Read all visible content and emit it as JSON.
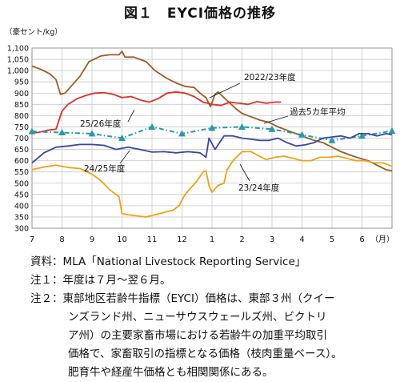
{
  "title": "図１　EYCI価格の推移",
  "chart_data": {
    "type": "line",
    "ylabel": "（豪セント/kg）",
    "ylim": [
      300,
      1100
    ],
    "y_ticks": [
      "300",
      "350",
      "400",
      "450",
      "500",
      "550",
      "600",
      "650",
      "700",
      "750",
      "800",
      "850",
      "900",
      "950",
      "1,000",
      "1,050",
      "1,100"
    ],
    "x_ticks": [
      "7",
      "8",
      "9",
      "10",
      "11",
      "12",
      "1",
      "2",
      "3",
      "4",
      "5",
      "6"
    ],
    "x_unit": "（月）",
    "grid": true,
    "series": [
      {
        "name": "2022/23年度",
        "color": "#9b5d25",
        "points": [
          [
            0,
            1020
          ],
          [
            0.3,
            1005
          ],
          [
            0.6,
            985
          ],
          [
            0.8,
            960
          ],
          [
            0.95,
            895
          ],
          [
            1.1,
            900
          ],
          [
            1.3,
            930
          ],
          [
            1.6,
            975
          ],
          [
            1.9,
            1040
          ],
          [
            2.3,
            1065
          ],
          [
            2.6,
            1070
          ],
          [
            2.9,
            1070
          ],
          [
            3.0,
            1085
          ],
          [
            3.1,
            1060
          ],
          [
            3.4,
            1060
          ],
          [
            3.8,
            1040
          ],
          [
            4.1,
            1000
          ],
          [
            4.5,
            965
          ],
          [
            4.8,
            945
          ],
          [
            5.1,
            930
          ],
          [
            5.4,
            925
          ],
          [
            5.6,
            900
          ],
          [
            5.8,
            880
          ],
          [
            5.95,
            840
          ],
          [
            6.1,
            895
          ],
          [
            6.2,
            905
          ],
          [
            6.4,
            880
          ],
          [
            6.6,
            855
          ],
          [
            6.8,
            830
          ],
          [
            7.0,
            810
          ],
          [
            7.3,
            795
          ],
          [
            7.6,
            780
          ],
          [
            7.9,
            770
          ],
          [
            8.2,
            750
          ],
          [
            8.5,
            735
          ],
          [
            8.8,
            720
          ],
          [
            9.1,
            705
          ],
          [
            9.4,
            690
          ],
          [
            9.7,
            680
          ],
          [
            10.0,
            660
          ],
          [
            10.3,
            640
          ],
          [
            10.6,
            625
          ],
          [
            10.9,
            612
          ],
          [
            11.2,
            600
          ],
          [
            11.5,
            580
          ],
          [
            11.8,
            560
          ],
          [
            12.0,
            555
          ]
        ]
      },
      {
        "name": "25/26年度",
        "color": "#e0302a",
        "points": [
          [
            0,
            725
          ],
          [
            0.2,
            725
          ],
          [
            0.5,
            735
          ],
          [
            0.8,
            740
          ],
          [
            1.0,
            820
          ],
          [
            1.2,
            850
          ],
          [
            1.5,
            875
          ],
          [
            1.8,
            890
          ],
          [
            2.1,
            900
          ],
          [
            2.4,
            902
          ],
          [
            2.7,
            895
          ],
          [
            3.0,
            880
          ],
          [
            3.3,
            885
          ],
          [
            3.6,
            870
          ],
          [
            3.9,
            860
          ],
          [
            4.2,
            875
          ],
          [
            4.5,
            900
          ],
          [
            4.8,
            905
          ],
          [
            5.1,
            900
          ],
          [
            5.4,
            885
          ],
          [
            5.7,
            860
          ],
          [
            6.0,
            850
          ],
          [
            6.3,
            845
          ],
          [
            6.6,
            860
          ],
          [
            6.9,
            855
          ],
          [
            7.2,
            850
          ],
          [
            7.5,
            862
          ],
          [
            7.8,
            855
          ],
          [
            8.1,
            860
          ],
          [
            8.3,
            860
          ]
        ]
      },
      {
        "name": "過去5カ年平均",
        "color": "#2a9aa5",
        "dashed": true,
        "markers": true,
        "points": [
          [
            0,
            730
          ],
          [
            1,
            725
          ],
          [
            2,
            720
          ],
          [
            3,
            700
          ],
          [
            4,
            750
          ],
          [
            5,
            720
          ],
          [
            6,
            745
          ],
          [
            7,
            750
          ],
          [
            8,
            740
          ],
          [
            9,
            715
          ],
          [
            10,
            690
          ],
          [
            11,
            710
          ],
          [
            12,
            732
          ]
        ]
      },
      {
        "name": "24/25年度",
        "color": "#3a46a5",
        "points": [
          [
            0,
            590
          ],
          [
            0.4,
            635
          ],
          [
            0.8,
            660
          ],
          [
            1.2,
            665
          ],
          [
            1.6,
            672
          ],
          [
            2.0,
            672
          ],
          [
            2.4,
            668
          ],
          [
            2.8,
            650
          ],
          [
            3.2,
            660
          ],
          [
            3.6,
            650
          ],
          [
            4.0,
            638
          ],
          [
            4.4,
            640
          ],
          [
            4.8,
            635
          ],
          [
            5.2,
            640
          ],
          [
            5.6,
            635
          ],
          [
            5.8,
            615
          ],
          [
            5.9,
            700
          ],
          [
            6.1,
            650
          ],
          [
            6.4,
            710
          ],
          [
            6.7,
            710
          ],
          [
            7.0,
            700
          ],
          [
            7.3,
            695
          ],
          [
            7.6,
            690
          ],
          [
            7.9,
            690
          ],
          [
            8.2,
            700
          ],
          [
            8.5,
            680
          ],
          [
            8.8,
            665
          ],
          [
            9.1,
            670
          ],
          [
            9.4,
            680
          ],
          [
            9.7,
            700
          ],
          [
            10.0,
            705
          ],
          [
            10.3,
            710
          ],
          [
            10.6,
            700
          ],
          [
            10.9,
            720
          ],
          [
            11.2,
            720
          ],
          [
            11.5,
            710
          ],
          [
            11.8,
            720
          ],
          [
            12.0,
            715
          ]
        ]
      },
      {
        "name": "23/24年度",
        "color": "#f2a215",
        "points": [
          [
            0,
            560
          ],
          [
            0.4,
            572
          ],
          [
            0.8,
            580
          ],
          [
            1.2,
            570
          ],
          [
            1.6,
            565
          ],
          [
            2.0,
            540
          ],
          [
            2.3,
            510
          ],
          [
            2.6,
            470
          ],
          [
            2.9,
            440
          ],
          [
            3.0,
            365
          ],
          [
            3.2,
            360
          ],
          [
            3.5,
            355
          ],
          [
            3.8,
            350
          ],
          [
            4.1,
            360
          ],
          [
            4.4,
            370
          ],
          [
            4.7,
            380
          ],
          [
            4.9,
            400
          ],
          [
            5.1,
            450
          ],
          [
            5.3,
            480
          ],
          [
            5.5,
            510
          ],
          [
            5.7,
            550
          ],
          [
            5.8,
            555
          ],
          [
            5.9,
            490
          ],
          [
            6.0,
            460
          ],
          [
            6.2,
            490
          ],
          [
            6.4,
            500
          ],
          [
            6.5,
            560
          ],
          [
            6.7,
            600
          ],
          [
            7.0,
            640
          ],
          [
            7.3,
            640
          ],
          [
            7.5,
            625
          ],
          [
            7.8,
            605
          ],
          [
            8.1,
            615
          ],
          [
            8.4,
            620
          ],
          [
            8.7,
            610
          ],
          [
            9.0,
            600
          ],
          [
            9.3,
            600
          ],
          [
            9.6,
            615
          ],
          [
            9.9,
            615
          ],
          [
            10.2,
            620
          ],
          [
            10.5,
            610
          ],
          [
            10.8,
            600
          ],
          [
            11.1,
            600
          ],
          [
            11.4,
            590
          ],
          [
            11.7,
            590
          ],
          [
            12.0,
            575
          ]
        ]
      }
    ],
    "labels": [
      {
        "text": "2022/23年度",
        "series": 0
      },
      {
        "text": "25/26年度",
        "series": 1
      },
      {
        "text": "過去5カ年平均",
        "series": 2
      },
      {
        "text": "24/25年度",
        "series": 3
      },
      {
        "text": "23/24年度",
        "series": 4
      }
    ]
  },
  "notes": {
    "source_label": "資料：",
    "source_text": "MLA「National Livestock Reporting Service」",
    "note1_label": "注１：",
    "note1_text": "年度は７月～翌６月。",
    "note2_label": "注２：",
    "note2_lines": [
      "東部地区若齢牛指標（EYCI）価格は、東部３州（クイー",
      "ンズランド州、ニューサウスウェールズ州、ビクトリ",
      "ア州）の主要家畜市場における若齢牛の加重平均取引",
      "価格で、家畜取引の指標となる価格（枝肉重量ベース）。",
      "肥育牛や経産牛価格とも相関関係にある。"
    ]
  }
}
